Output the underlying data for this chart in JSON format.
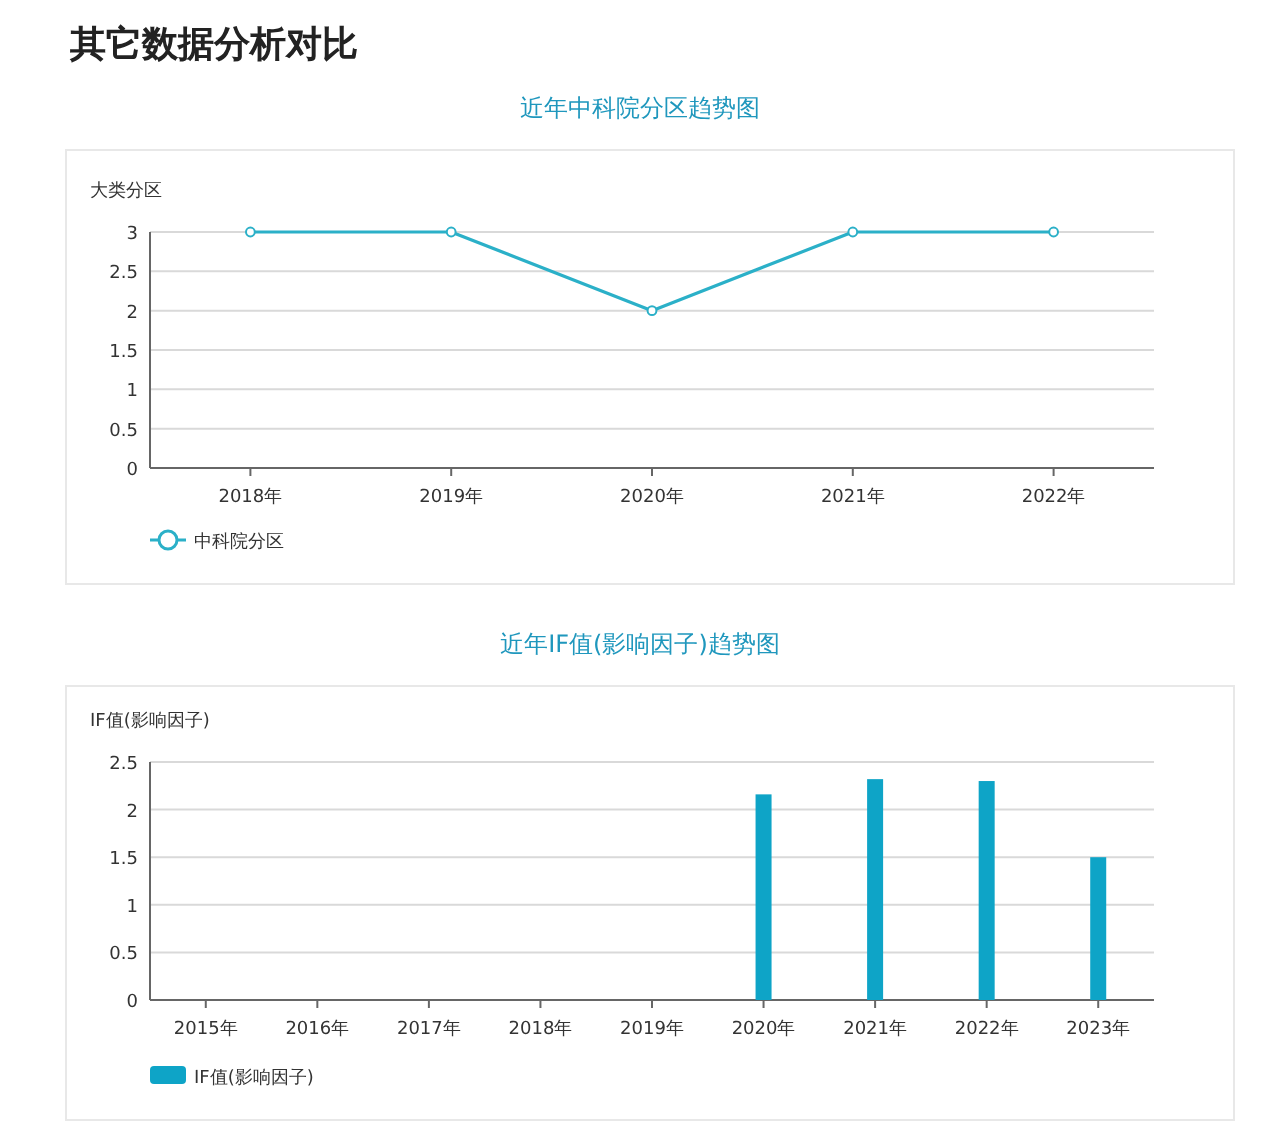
{
  "chart_data": [
    {
      "type": "line",
      "title": "近年中科院分区趋势图",
      "ylabel": "大类分区",
      "annotations": [
        "其它数据分析对比"
      ],
      "categories": [
        "2018年",
        "2019年",
        "2020年",
        "2021年",
        "2022年"
      ],
      "series": [
        {
          "name": "中科院分区",
          "color": "#2bb0c8",
          "values": [
            3,
            3,
            2,
            3,
            3
          ]
        }
      ],
      "ylim": [
        0,
        3
      ],
      "yticks": [
        0,
        0.5,
        1,
        1.5,
        2,
        2.5,
        3
      ],
      "grid": "y",
      "legend": "bottom left",
      "marker": "circle"
    },
    {
      "type": "bar",
      "title": "近年IF值(影响因子)趋势图",
      "ylabel": "IF值(影响因子)",
      "categories": [
        "2015年",
        "2016年",
        "2017年",
        "2018年",
        "2019年",
        "2020年",
        "2021年",
        "2022年",
        "2023年"
      ],
      "series": [
        {
          "name": "IF值(影响因子)",
          "color": "#0ea4c7",
          "values": [
            null,
            null,
            null,
            null,
            null,
            2.16,
            2.32,
            2.3,
            1.5
          ]
        }
      ],
      "ylim": [
        0,
        2.5
      ],
      "yticks": [
        0,
        0.5,
        1,
        1.5,
        2,
        2.5
      ],
      "grid": "y",
      "legend": "bottom left"
    }
  ]
}
